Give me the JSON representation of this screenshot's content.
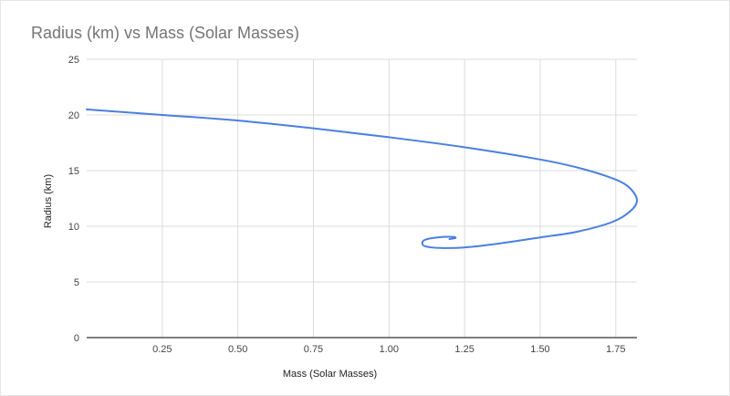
{
  "chart_data": {
    "type": "line",
    "title": "Radius (km) vs Mass (Solar Masses)",
    "xlabel": "Mass (Solar Masses)",
    "ylabel": "Radius (km)",
    "xlim": [
      0.0,
      1.82
    ],
    "ylim": [
      0,
      25
    ],
    "xticks": [
      0.25,
      0.5,
      0.75,
      1.0,
      1.25,
      1.5,
      1.75
    ],
    "xtick_labels": [
      "0.25",
      "0.50",
      "0.75",
      "1.00",
      "1.25",
      "1.50",
      "1.75"
    ],
    "yticks": [
      0,
      5,
      10,
      15,
      20,
      25
    ],
    "ytick_labels": [
      "0",
      "5",
      "10",
      "15",
      "20",
      "25"
    ],
    "grid": true,
    "legend": "none",
    "color": "#4a7fe0",
    "series": [
      {
        "x": [
          0.0,
          0.25,
          0.5,
          0.75,
          1.0,
          1.25,
          1.5,
          1.62,
          1.73,
          1.79,
          1.82,
          1.8,
          1.74,
          1.62,
          1.5,
          1.35,
          1.25,
          1.17,
          1.12,
          1.11,
          1.12,
          1.16,
          1.21,
          1.22,
          1.2
        ],
        "y": [
          20.5,
          20.0,
          19.5,
          18.8,
          18.0,
          17.1,
          16.0,
          15.3,
          14.4,
          13.6,
          12.4,
          11.4,
          10.4,
          9.5,
          9.0,
          8.4,
          8.1,
          8.05,
          8.2,
          8.5,
          8.8,
          9.0,
          9.05,
          8.95,
          8.85
        ]
      }
    ]
  }
}
